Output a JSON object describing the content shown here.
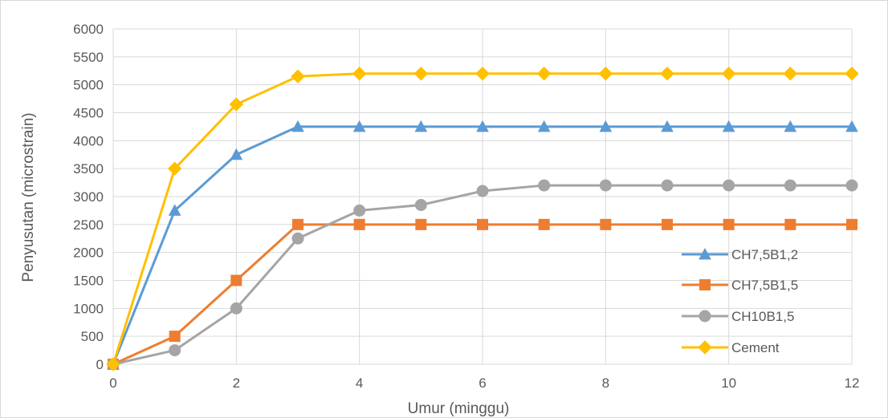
{
  "chart_data": {
    "type": "line",
    "title": "",
    "xlabel": "Umur (minggu)",
    "ylabel": "Penyusutan (microstrain)",
    "xlim": [
      0,
      12
    ],
    "ylim": [
      0,
      6000
    ],
    "x_ticks": [
      0,
      2,
      4,
      6,
      8,
      10,
      12
    ],
    "y_ticks": [
      0,
      500,
      1000,
      1500,
      2000,
      2500,
      3000,
      3500,
      4000,
      4500,
      5000,
      5500,
      6000
    ],
    "grid": true,
    "legend_position": "right",
    "series": [
      {
        "name": "CH7,5B1,2",
        "color": "#5b9bd5",
        "marker": "triangle",
        "x": [
          0,
          1,
          2,
          3,
          4,
          5,
          6,
          7,
          8,
          9,
          10,
          11,
          12
        ],
        "values": [
          0,
          2750,
          3750,
          4250,
          4250,
          4250,
          4250,
          4250,
          4250,
          4250,
          4250,
          4250,
          4250
        ]
      },
      {
        "name": "CH7,5B1,5",
        "color": "#ed7d31",
        "marker": "square",
        "x": [
          0,
          1,
          2,
          3,
          4,
          5,
          6,
          7,
          8,
          9,
          10,
          11,
          12
        ],
        "values": [
          0,
          500,
          1500,
          2500,
          2500,
          2500,
          2500,
          2500,
          2500,
          2500,
          2500,
          2500,
          2500
        ]
      },
      {
        "name": "CH10B1,5",
        "color": "#a5a5a5",
        "marker": "circle",
        "x": [
          0,
          1,
          2,
          3,
          4,
          5,
          6,
          7,
          8,
          9,
          10,
          11,
          12
        ],
        "values": [
          0,
          250,
          1000,
          2250,
          2750,
          2850,
          3100,
          3200,
          3200,
          3200,
          3200,
          3200,
          3200
        ]
      },
      {
        "name": "Cement",
        "color": "#ffc000",
        "marker": "diamond",
        "x": [
          0,
          1,
          2,
          3,
          4,
          5,
          6,
          7,
          8,
          9,
          10,
          11,
          12
        ],
        "values": [
          0,
          3500,
          4650,
          5150,
          5200,
          5200,
          5200,
          5200,
          5200,
          5200,
          5200,
          5200,
          5200
        ]
      }
    ]
  }
}
